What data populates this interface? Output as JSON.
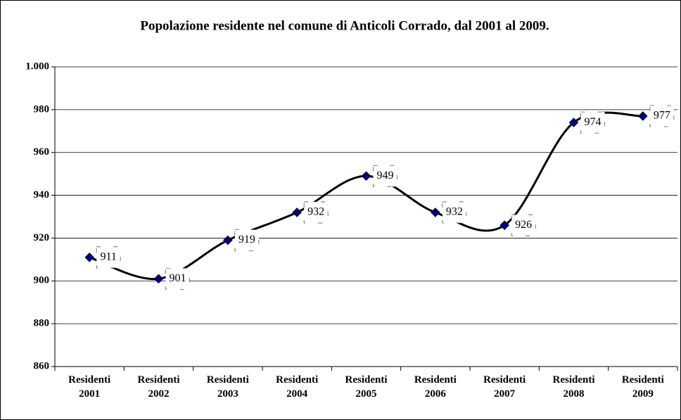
{
  "chart_data": {
    "type": "line",
    "title": "Popolazione residente nel comune di Anticoli Corrado, dal 2001 al 2009.",
    "categories": [
      "Residenti 2001",
      "Residenti 2002",
      "Residenti 2003",
      "Residenti 2004",
      "Residenti 2005",
      "Residenti 2006",
      "Residenti 2007",
      "Residenti 2008",
      "Residenti 2009"
    ],
    "series": [
      {
        "name": "Residenti",
        "color": "#000000",
        "marker_color": "#000080",
        "values": [
          911,
          901,
          919,
          932,
          949,
          932,
          926,
          974,
          977
        ]
      }
    ],
    "ylim": [
      860,
      1000
    ],
    "yticks": [
      860,
      880,
      900,
      920,
      940,
      960,
      980,
      {
        "value": 1000,
        "label": "1.000"
      }
    ],
    "grid": true,
    "smooth": true,
    "data_labels": true
  }
}
